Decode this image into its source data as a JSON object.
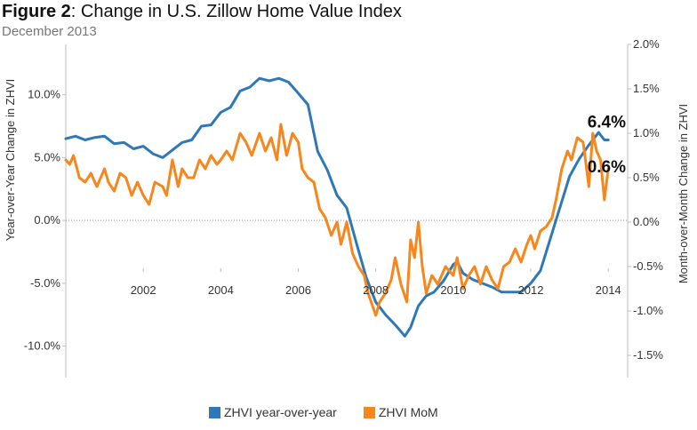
{
  "title": {
    "figure_label": "Figure 2",
    "text": ": Change in U.S. Zillow Home Value Index"
  },
  "subtitle": "December 2013",
  "colors": {
    "yoy": "#2e78b7",
    "mom": "#f7861d",
    "axis": "#bdbdbd",
    "zero": "#999999"
  },
  "chart_data": {
    "type": "line",
    "xlabel": "",
    "x_ticks": [
      "2002",
      "2004",
      "2006",
      "2008",
      "2010",
      "2012",
      "2014"
    ],
    "x_range": [
      2000.0,
      2014.5
    ],
    "ylabel_left": "Year-over-Year Change in ZHVI",
    "ylabel_right": "Month-over-Month Change in ZHVI",
    "y_left_ticks": [
      "10.0%",
      "5.0%",
      "0.0%",
      "-5.0%",
      "-10.0%"
    ],
    "y_left_tick_values": [
      10,
      5,
      0,
      -5,
      -10
    ],
    "y_left_range": [
      -12.5,
      14
    ],
    "y_right_ticks": [
      "2.0%",
      "1.5%",
      "1.0%",
      "0.5%",
      "0.0%",
      "-0.5%",
      "-1.0%",
      "-1.5%"
    ],
    "y_right_tick_values": [
      2.0,
      1.5,
      1.0,
      0.5,
      0.0,
      -0.5,
      -1.0,
      -1.5
    ],
    "y_right_range": [
      -1.75,
      2.0
    ],
    "zero_line": true,
    "grid": false,
    "legend_position": "bottom",
    "annotations": [
      {
        "text": "6.4%",
        "series": "ZHVI year-over-year",
        "x": 2013.85,
        "value": 6.4
      },
      {
        "text": "0.6%",
        "series": "ZHVI MoM",
        "x": 2013.85,
        "value": 0.6
      }
    ],
    "series": [
      {
        "name": "ZHVI year-over-year",
        "axis": "left",
        "x": [
          2000.0,
          2000.25,
          2000.5,
          2000.75,
          2001.0,
          2001.25,
          2001.5,
          2001.75,
          2002.0,
          2002.25,
          2002.5,
          2002.75,
          2003.0,
          2003.25,
          2003.5,
          2003.75,
          2004.0,
          2004.25,
          2004.5,
          2004.75,
          2005.0,
          2005.25,
          2005.5,
          2005.75,
          2005.95,
          2006.25,
          2006.5,
          2006.75,
          2007.0,
          2007.25,
          2007.5,
          2007.75,
          2008.0,
          2008.25,
          2008.5,
          2008.75,
          2008.9,
          2009.1,
          2009.3,
          2009.5,
          2009.75,
          2010.0,
          2010.1,
          2010.25,
          2010.5,
          2010.75,
          2011.0,
          2011.25,
          2011.5,
          2011.75,
          2012.0,
          2012.25,
          2012.5,
          2012.75,
          2013.0,
          2013.25,
          2013.5,
          2013.75,
          2013.9,
          2014.0
        ],
        "values": [
          6.5,
          6.7,
          6.4,
          6.6,
          6.7,
          6.1,
          6.2,
          5.7,
          5.9,
          5.3,
          5.0,
          5.6,
          6.2,
          6.4,
          7.5,
          7.6,
          8.6,
          9.0,
          10.3,
          10.6,
          11.3,
          11.1,
          11.3,
          11.0,
          10.3,
          9.2,
          5.5,
          4.0,
          2.0,
          1.0,
          -1.8,
          -4.5,
          -6.5,
          -7.5,
          -8.3,
          -9.2,
          -8.5,
          -6.8,
          -6.0,
          -5.7,
          -4.8,
          -3.5,
          -3.3,
          -4.2,
          -4.7,
          -5.0,
          -5.3,
          -5.7,
          -5.7,
          -5.7,
          -5.0,
          -4.0,
          -1.5,
          1.0,
          3.5,
          4.9,
          6.0,
          7.0,
          6.4,
          6.4
        ]
      },
      {
        "name": "ZHVI MoM",
        "axis": "right",
        "x": [
          2000.0,
          2000.1,
          2000.2,
          2000.35,
          2000.5,
          2000.65,
          2000.8,
          2001.0,
          2001.1,
          2001.25,
          2001.4,
          2001.55,
          2001.7,
          2001.85,
          2002.0,
          2002.15,
          2002.3,
          2002.5,
          2002.6,
          2002.75,
          2002.9,
          2003.0,
          2003.15,
          2003.3,
          2003.45,
          2003.6,
          2003.75,
          2003.9,
          2004.0,
          2004.15,
          2004.3,
          2004.5,
          2004.65,
          2004.8,
          2005.0,
          2005.15,
          2005.3,
          2005.45,
          2005.55,
          2005.7,
          2005.85,
          2006.0,
          2006.1,
          2006.25,
          2006.4,
          2006.55,
          2006.7,
          2006.85,
          2007.0,
          2007.1,
          2007.25,
          2007.4,
          2007.55,
          2007.7,
          2007.8,
          2008.0,
          2008.1,
          2008.25,
          2008.4,
          2008.5,
          2008.65,
          2008.8,
          2008.9,
          2009.0,
          2009.1,
          2009.2,
          2009.3,
          2009.45,
          2009.6,
          2009.8,
          2010.0,
          2010.1,
          2010.25,
          2010.4,
          2010.55,
          2010.7,
          2010.85,
          2011.0,
          2011.15,
          2011.3,
          2011.45,
          2011.6,
          2011.75,
          2011.9,
          2012.0,
          2012.1,
          2012.25,
          2012.4,
          2012.55,
          2012.65,
          2012.8,
          2012.95,
          2013.05,
          2013.2,
          2013.35,
          2013.5,
          2013.6,
          2013.7,
          2013.8,
          2013.9,
          2014.0
        ],
        "values": [
          0.7,
          0.65,
          0.75,
          0.5,
          0.45,
          0.55,
          0.4,
          0.6,
          0.45,
          0.35,
          0.55,
          0.5,
          0.3,
          0.45,
          0.3,
          0.2,
          0.45,
          0.4,
          0.3,
          0.7,
          0.4,
          0.6,
          0.5,
          0.5,
          0.7,
          0.6,
          0.75,
          0.65,
          0.7,
          0.8,
          0.7,
          1.0,
          0.9,
          0.75,
          1.0,
          0.8,
          0.95,
          0.7,
          1.1,
          0.75,
          1.0,
          0.9,
          0.6,
          0.5,
          0.45,
          0.15,
          0.05,
          -0.15,
          0.0,
          -0.25,
          0.0,
          -0.35,
          -0.5,
          -0.6,
          -0.8,
          -1.05,
          -0.9,
          -0.8,
          -0.65,
          -0.4,
          -0.7,
          -0.9,
          -0.2,
          -0.4,
          0.0,
          -0.5,
          -0.8,
          -0.6,
          -0.7,
          -0.5,
          -0.6,
          -0.4,
          -0.75,
          -0.6,
          -0.5,
          -0.7,
          -0.5,
          -0.65,
          -0.75,
          -0.5,
          -0.45,
          -0.3,
          -0.45,
          -0.25,
          -0.15,
          -0.3,
          -0.1,
          -0.05,
          0.05,
          0.25,
          0.6,
          0.8,
          0.7,
          0.95,
          0.9,
          0.4,
          1.0,
          0.8,
          0.7,
          0.25,
          0.6
        ]
      }
    ]
  },
  "legend": [
    {
      "label": "ZHVI year-over-year",
      "color": "#2e78b7"
    },
    {
      "label": "ZHVI MoM",
      "color": "#f7861d"
    }
  ]
}
